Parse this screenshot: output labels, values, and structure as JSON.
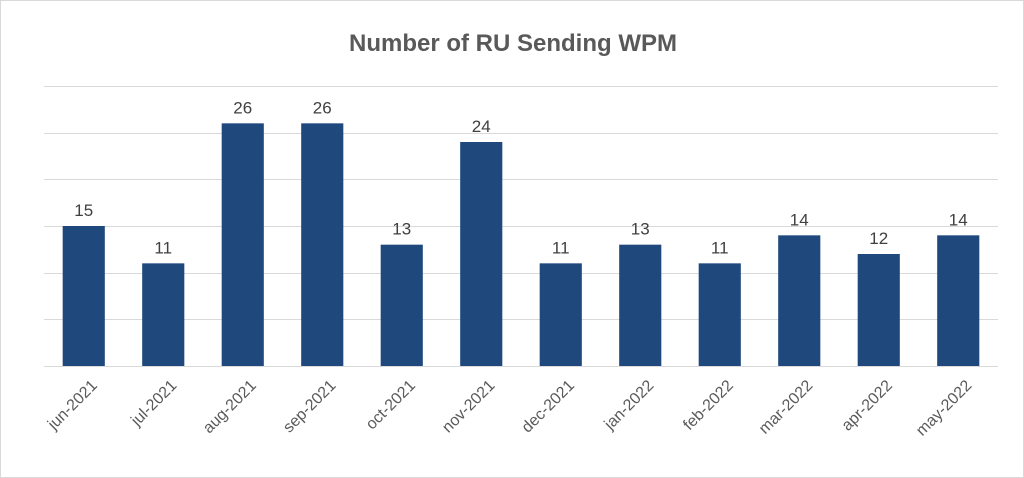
{
  "chart_data": {
    "type": "bar",
    "title": "Number of RU Sending WPM",
    "categories": [
      "jun-2021",
      "jul-2021",
      "aug-2021",
      "sep-2021",
      "oct-2021",
      "nov-2021",
      "dec-2021",
      "jan-2022",
      "feb-2022",
      "mar-2022",
      "apr-2022",
      "may-2022"
    ],
    "values": [
      15,
      11,
      26,
      26,
      13,
      24,
      11,
      13,
      11,
      14,
      12,
      14
    ],
    "ylim": [
      0,
      30
    ],
    "y_gridline_step": 5,
    "grid": true,
    "legend": "none",
    "data_labels": true,
    "bar_color": "#1f497d"
  }
}
